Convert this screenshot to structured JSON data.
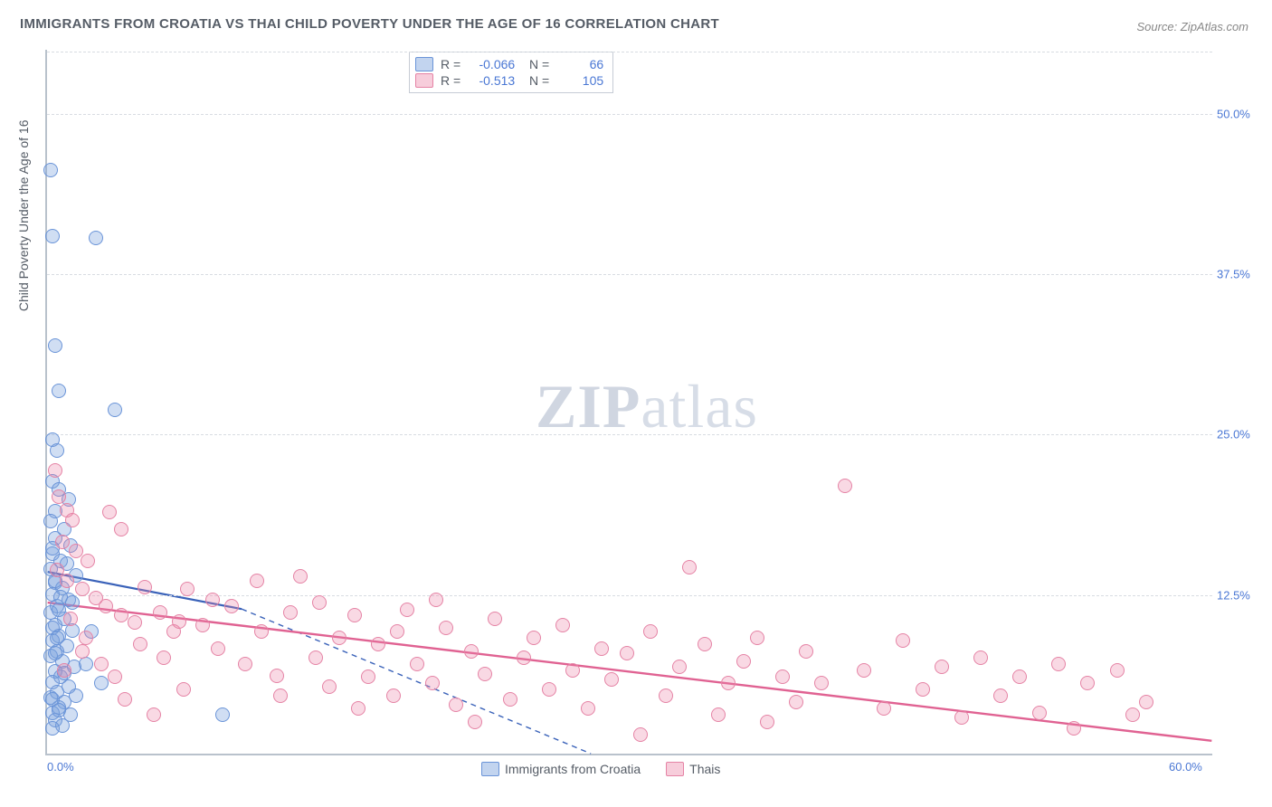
{
  "title": "IMMIGRANTS FROM CROATIA VS THAI CHILD POVERTY UNDER THE AGE OF 16 CORRELATION CHART",
  "source": "Source: ZipAtlas.com",
  "ylabel": "Child Poverty Under the Age of 16",
  "watermark_bold": "ZIP",
  "watermark_rest": "atlas",
  "chart": {
    "type": "scatter",
    "xlim": [
      0,
      60
    ],
    "ylim": [
      0,
      55
    ],
    "xticks": [
      {
        "v": 0,
        "label": "0.0%"
      },
      {
        "v": 60,
        "label": "60.0%"
      }
    ],
    "yticks": [
      {
        "v": 12.5,
        "label": "12.5%"
      },
      {
        "v": 25,
        "label": "25.0%"
      },
      {
        "v": 37.5,
        "label": "37.5%"
      },
      {
        "v": 50,
        "label": "50.0%"
      }
    ],
    "grid_color": "#d8dce2",
    "axis_color": "#b9c2cc",
    "background_color": "#ffffff",
    "marker_size": 16,
    "series": [
      {
        "name": "Immigrants from Croatia",
        "marker_color_fill": "rgba(120,160,220,0.35)",
        "marker_color_stroke": "#6a94d8",
        "cls": "pt-blue",
        "regression": {
          "x1": 0,
          "y1": 14.2,
          "x2_solid": 10,
          "y2_solid": 11.3,
          "x2_dash": 28,
          "y2_dash": 0,
          "stroke": "#3a62b9",
          "width": 2.2
        },
        "points": [
          [
            0.2,
            45.5
          ],
          [
            0.3,
            40.3
          ],
          [
            2.5,
            40.2
          ],
          [
            0.4,
            31.8
          ],
          [
            0.6,
            28.3
          ],
          [
            3.5,
            26.8
          ],
          [
            0.3,
            24.5
          ],
          [
            0.5,
            23.6
          ],
          [
            0.3,
            21.2
          ],
          [
            0.6,
            20.6
          ],
          [
            1.1,
            19.8
          ],
          [
            0.4,
            18.9
          ],
          [
            0.2,
            18.1
          ],
          [
            0.9,
            17.5
          ],
          [
            0.4,
            16.8
          ],
          [
            1.2,
            16.2
          ],
          [
            0.3,
            15.6
          ],
          [
            0.7,
            15.0
          ],
          [
            0.2,
            14.4
          ],
          [
            1.5,
            13.9
          ],
          [
            0.4,
            13.3
          ],
          [
            0.8,
            12.9
          ],
          [
            0.3,
            12.4
          ],
          [
            1.1,
            12.0
          ],
          [
            0.5,
            11.5
          ],
          [
            0.2,
            11.0
          ],
          [
            0.9,
            10.5
          ],
          [
            0.4,
            10.0
          ],
          [
            1.3,
            9.6
          ],
          [
            0.6,
            9.2
          ],
          [
            0.3,
            8.8
          ],
          [
            1.0,
            8.4
          ],
          [
            0.5,
            8.0
          ],
          [
            0.2,
            7.6
          ],
          [
            0.8,
            7.2
          ],
          [
            1.4,
            6.8
          ],
          [
            0.4,
            6.4
          ],
          [
            0.7,
            6.0
          ],
          [
            0.3,
            5.6
          ],
          [
            1.1,
            5.2
          ],
          [
            0.5,
            4.8
          ],
          [
            0.2,
            4.4
          ],
          [
            0.9,
            4.0
          ],
          [
            1.5,
            4.5
          ],
          [
            2.0,
            7.0
          ],
          [
            2.3,
            9.5
          ],
          [
            2.8,
            5.5
          ],
          [
            0.6,
            3.6
          ],
          [
            0.3,
            3.2
          ],
          [
            1.2,
            3.0
          ],
          [
            0.4,
            2.6
          ],
          [
            0.8,
            2.2
          ],
          [
            9.0,
            3.0
          ],
          [
            0.3,
            9.8
          ],
          [
            0.6,
            11.2
          ],
          [
            0.4,
            13.5
          ],
          [
            1.0,
            14.8
          ],
          [
            0.3,
            16.0
          ],
          [
            0.7,
            12.2
          ],
          [
            0.4,
            7.8
          ],
          [
            0.9,
            6.3
          ],
          [
            0.3,
            4.2
          ],
          [
            0.6,
            3.4
          ],
          [
            0.3,
            2.0
          ],
          [
            1.3,
            11.8
          ],
          [
            0.5,
            9.0
          ]
        ]
      },
      {
        "name": "Thais",
        "marker_color_fill": "rgba(235,130,165,0.30)",
        "marker_color_stroke": "#e583a5",
        "cls": "pt-pink",
        "regression": {
          "x1": 0,
          "y1": 11.8,
          "x2_solid": 60,
          "y2_solid": 1.0,
          "stroke": "#e06292",
          "width": 2.4
        },
        "points": [
          [
            0.4,
            22.1
          ],
          [
            0.6,
            20.0
          ],
          [
            1.0,
            19.0
          ],
          [
            1.3,
            18.2
          ],
          [
            3.2,
            18.8
          ],
          [
            3.8,
            17.5
          ],
          [
            0.8,
            16.5
          ],
          [
            1.5,
            15.8
          ],
          [
            2.1,
            15.0
          ],
          [
            0.5,
            14.3
          ],
          [
            1.0,
            13.5
          ],
          [
            1.8,
            12.8
          ],
          [
            2.5,
            12.1
          ],
          [
            3.0,
            11.5
          ],
          [
            3.8,
            10.8
          ],
          [
            4.5,
            10.2
          ],
          [
            5.0,
            13.0
          ],
          [
            5.8,
            11.0
          ],
          [
            6.5,
            9.5
          ],
          [
            7.2,
            12.8
          ],
          [
            8.0,
            10.0
          ],
          [
            8.8,
            8.2
          ],
          [
            9.5,
            11.5
          ],
          [
            10.2,
            7.0
          ],
          [
            11.0,
            9.5
          ],
          [
            11.8,
            6.1
          ],
          [
            12.5,
            11.0
          ],
          [
            13.0,
            13.8
          ],
          [
            13.8,
            7.5
          ],
          [
            14.5,
            5.2
          ],
          [
            15.0,
            9.0
          ],
          [
            15.8,
            10.8
          ],
          [
            16.5,
            6.0
          ],
          [
            17.0,
            8.5
          ],
          [
            17.8,
            4.5
          ],
          [
            18.5,
            11.2
          ],
          [
            19.0,
            7.0
          ],
          [
            19.8,
            5.5
          ],
          [
            20.5,
            9.8
          ],
          [
            21.0,
            3.8
          ],
          [
            21.8,
            8.0
          ],
          [
            22.5,
            6.2
          ],
          [
            23.0,
            10.5
          ],
          [
            23.8,
            4.2
          ],
          [
            24.5,
            7.5
          ],
          [
            25.0,
            9.0
          ],
          [
            25.8,
            5.0
          ],
          [
            26.5,
            10.0
          ],
          [
            27.0,
            6.5
          ],
          [
            27.8,
            3.5
          ],
          [
            28.5,
            8.2
          ],
          [
            29.0,
            5.8
          ],
          [
            29.8,
            7.8
          ],
          [
            30.5,
            1.5
          ],
          [
            31.0,
            9.5
          ],
          [
            31.8,
            4.5
          ],
          [
            32.5,
            6.8
          ],
          [
            33.0,
            14.5
          ],
          [
            33.8,
            8.5
          ],
          [
            34.5,
            3.0
          ],
          [
            35.0,
            5.5
          ],
          [
            35.8,
            7.2
          ],
          [
            36.5,
            9.0
          ],
          [
            37.0,
            2.5
          ],
          [
            37.8,
            6.0
          ],
          [
            38.5,
            4.0
          ],
          [
            39.0,
            8.0
          ],
          [
            39.8,
            5.5
          ],
          [
            41.0,
            20.9
          ],
          [
            42.0,
            6.5
          ],
          [
            43.0,
            3.5
          ],
          [
            44.0,
            8.8
          ],
          [
            45.0,
            5.0
          ],
          [
            46.0,
            6.8
          ],
          [
            47.0,
            2.8
          ],
          [
            48.0,
            7.5
          ],
          [
            49.0,
            4.5
          ],
          [
            50.0,
            6.0
          ],
          [
            51.0,
            3.2
          ],
          [
            52.0,
            7.0
          ],
          [
            52.8,
            2.0
          ],
          [
            53.5,
            5.5
          ],
          [
            55.0,
            6.5
          ],
          [
            55.8,
            3.0
          ],
          [
            56.5,
            4.0
          ],
          [
            3.5,
            6.0
          ],
          [
            4.0,
            4.2
          ],
          [
            5.5,
            3.0
          ],
          [
            6.0,
            7.5
          ],
          [
            7.0,
            5.0
          ],
          [
            2.0,
            9.0
          ],
          [
            2.8,
            7.0
          ],
          [
            1.2,
            10.5
          ],
          [
            1.8,
            8.0
          ],
          [
            0.9,
            6.5
          ],
          [
            4.8,
            8.5
          ],
          [
            6.8,
            10.3
          ],
          [
            8.5,
            12.0
          ],
          [
            10.8,
            13.5
          ],
          [
            12.0,
            4.5
          ],
          [
            14.0,
            11.8
          ],
          [
            16.0,
            3.5
          ],
          [
            18.0,
            9.5
          ],
          [
            20.0,
            12.0
          ],
          [
            22.0,
            2.5
          ]
        ]
      }
    ]
  },
  "stats": [
    {
      "R": "-0.066",
      "N": "66",
      "sw": "sw-blue"
    },
    {
      "R": "-0.513",
      "N": "105",
      "sw": "sw-pink"
    }
  ],
  "legend_items": [
    {
      "sw": "sw-blue",
      "label": "Immigrants from Croatia"
    },
    {
      "sw": "sw-pink",
      "label": "Thais"
    }
  ]
}
